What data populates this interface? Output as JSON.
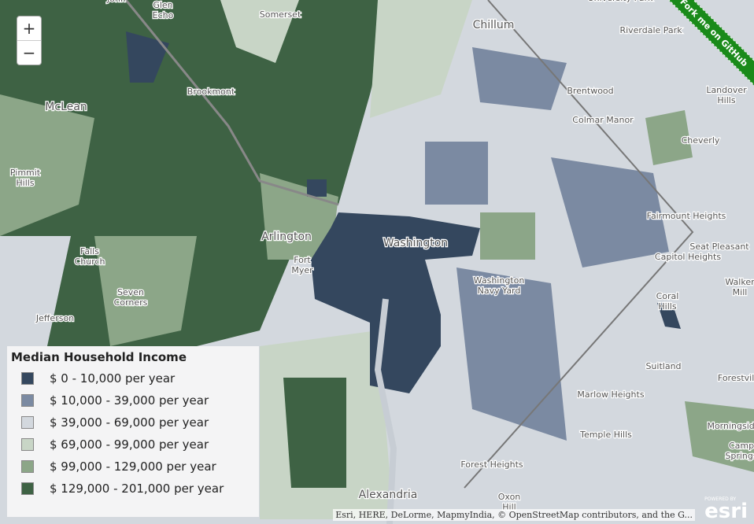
{
  "map": {
    "place_labels": [
      [
        "John"
      ],
      [
        "Glen",
        "Echo"
      ],
      [
        "Somerset"
      ],
      [
        "Chillum"
      ],
      [
        "University Park"
      ],
      [
        "Riverdale Park"
      ],
      [
        "Brookmont"
      ],
      [
        "McLean"
      ],
      [
        "Brentwood"
      ],
      [
        "Landover",
        "Hills"
      ],
      [
        "Colmar Manor"
      ],
      [
        "Cheverly"
      ],
      [
        "Pimmit",
        "Hills"
      ],
      [
        "Arlington"
      ],
      [
        "Washington"
      ],
      [
        "Fairmount Heights"
      ],
      [
        "Seat Pleasant"
      ],
      [
        "Capitol Heights"
      ],
      [
        "Falls",
        "Church"
      ],
      [
        "Fort",
        "Myer"
      ],
      [
        "Washington",
        "Navy Yard"
      ],
      [
        "Coral",
        "Hills"
      ],
      [
        "Walker",
        "Mill"
      ],
      [
        "Seven",
        "Corners"
      ],
      [
        "Jefferson"
      ],
      [
        "Suitland"
      ],
      [
        "Forestville"
      ],
      [
        "Marlow Heights"
      ],
      [
        "Morningside"
      ],
      [
        "Temple Hills"
      ],
      [
        "Camp",
        "Springs"
      ],
      [
        "Forest Heights"
      ],
      [
        "Alexandria"
      ],
      [
        "Oxon",
        "Hill"
      ]
    ],
    "zoom_in": "+",
    "zoom_out": "−",
    "ribbon": "Fork me on GitHub",
    "attribution": "Esri, HERE, DeLorme, MapmyIndia, © OpenStreetMap contributors, and the G...",
    "logo_caption": "POWERED BY",
    "logo": "esri",
    "legend": {
      "title": "Median Household Income",
      "items": [
        {
          "label": "$ 0 - 10,000 per year",
          "color": "#34475e"
        },
        {
          "label": "$ 10,000 - 39,000 per year",
          "color": "#7b8aa2"
        },
        {
          "label": "$ 39,000 - 69,000 per year",
          "color": "#d3d8de"
        },
        {
          "label": "$ 69,000 - 99,000 per year",
          "color": "#c8d5c6"
        },
        {
          "label": "$ 99,000 - 129,000 per year",
          "color": "#8ca688"
        },
        {
          "label": "$ 129,000 - 201,000 per year",
          "color": "#3e6244"
        }
      ]
    }
  }
}
